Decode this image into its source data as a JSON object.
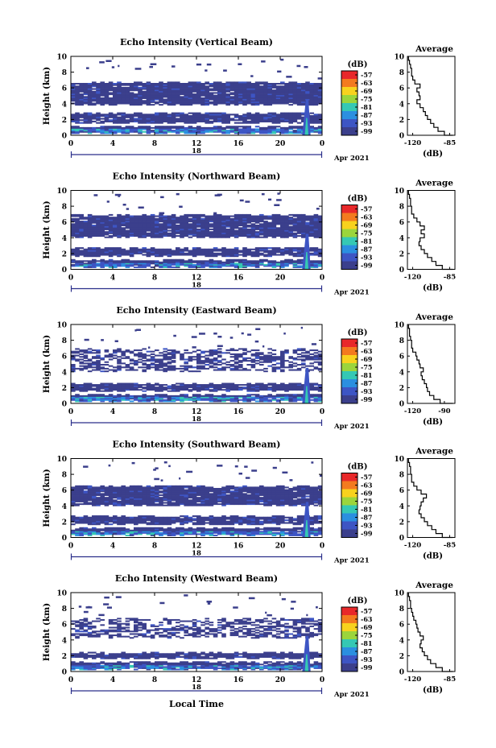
{
  "figure": {
    "date_label": "Apr 2021",
    "bottom_xlabel": "Local Time"
  },
  "colorbar": {
    "unit_label": "(dB)",
    "ticks": [
      "-57",
      "-63",
      "-69",
      "-75",
      "-81",
      "-87",
      "-93",
      "-99"
    ],
    "colors": [
      "#e8282a",
      "#f37a1f",
      "#f8d21e",
      "#9bd53c",
      "#35c8b4",
      "#2b8fe0",
      "#3d55c4",
      "#3b3f8c"
    ]
  },
  "chart_data": [
    {
      "type": "heatmap",
      "title": "Echo Intensity (Vertical Beam)",
      "ylabel": "Height (km)",
      "x_ticks": [
        "0",
        "4",
        "8",
        "12",
        "16",
        "20",
        "0"
      ],
      "y_ticks": [
        "0",
        "2",
        "4",
        "6",
        "8",
        "10"
      ],
      "xlim": [
        0,
        24
      ],
      "ylim": [
        0,
        10
      ],
      "day_marker": "18",
      "layers": [
        {
          "y0": 0.2,
          "y1": 1.2,
          "level": "strong"
        },
        {
          "y0": 1.5,
          "y1": 2.9,
          "level": "weak"
        },
        {
          "y0": 3.8,
          "y1": 6.8,
          "level": "weak"
        }
      ],
      "average_profile": {
        "title": "Average",
        "xlabel": "(dB)",
        "x_ticks": [
          "-120",
          "-85"
        ],
        "y_ticks": [
          "0",
          "2",
          "4",
          "6",
          "8",
          "10"
        ],
        "xlim": [
          -125,
          -80
        ],
        "ylim": [
          0,
          10
        ],
        "points": [
          [
            -82,
            0
          ],
          [
            -90,
            0.5
          ],
          [
            -96,
            1
          ],
          [
            -100,
            1.5
          ],
          [
            -103,
            2
          ],
          [
            -106,
            2.5
          ],
          [
            -108,
            3
          ],
          [
            -110,
            3.5
          ],
          [
            -113,
            4
          ],
          [
            -116,
            4.5
          ],
          [
            -113,
            5
          ],
          [
            -114,
            5.5
          ],
          [
            -116,
            6
          ],
          [
            -113,
            6.5
          ],
          [
            -118,
            7
          ],
          [
            -120,
            7.5
          ],
          [
            -121,
            8
          ],
          [
            -121,
            8.5
          ],
          [
            -122,
            9
          ],
          [
            -123,
            9.5
          ],
          [
            -124,
            10
          ]
        ]
      }
    },
    {
      "type": "heatmap",
      "title": "Echo Intensity (Northward Beam)",
      "ylabel": "Height (km)",
      "x_ticks": [
        "0",
        "4",
        "8",
        "12",
        "16",
        "20",
        "0"
      ],
      "y_ticks": [
        "0",
        "2",
        "4",
        "6",
        "8",
        "10"
      ],
      "xlim": [
        0,
        24
      ],
      "ylim": [
        0,
        10
      ],
      "day_marker": "18",
      "layers": [
        {
          "y0": 0.2,
          "y1": 1.3,
          "level": "strong"
        },
        {
          "y0": 1.6,
          "y1": 2.8,
          "level": "weak"
        },
        {
          "y0": 4.0,
          "y1": 7.0,
          "level": "weak"
        }
      ],
      "average_profile": {
        "title": "Average",
        "xlabel": "(dB)",
        "x_ticks": [
          "-120",
          "-85"
        ],
        "y_ticks": [
          "0",
          "2",
          "4",
          "6",
          "8",
          "10"
        ],
        "xlim": [
          -125,
          -80
        ],
        "ylim": [
          0,
          10
        ],
        "points": [
          [
            -82,
            0
          ],
          [
            -92,
            0.5
          ],
          [
            -98,
            1
          ],
          [
            -102,
            1.5
          ],
          [
            -106,
            2
          ],
          [
            -109,
            2.5
          ],
          [
            -112,
            3
          ],
          [
            -114,
            3.5
          ],
          [
            -113,
            4
          ],
          [
            -109,
            4.5
          ],
          [
            -112,
            5
          ],
          [
            -109,
            5.5
          ],
          [
            -113,
            6
          ],
          [
            -116,
            6.5
          ],
          [
            -119,
            7
          ],
          [
            -121,
            7.5
          ],
          [
            -121,
            8
          ],
          [
            -122,
            8.5
          ],
          [
            -122,
            9
          ],
          [
            -123,
            9.5
          ],
          [
            -124,
            10
          ]
        ]
      }
    },
    {
      "type": "heatmap",
      "title": "Echo Intensity (Eastward Beam)",
      "ylabel": "Height (km)",
      "x_ticks": [
        "0",
        "4",
        "8",
        "12",
        "16",
        "20",
        "0"
      ],
      "y_ticks": [
        "0",
        "2",
        "4",
        "6",
        "8",
        "10"
      ],
      "xlim": [
        0,
        24
      ],
      "ylim": [
        0,
        10
      ],
      "day_marker": "18",
      "layers": [
        {
          "y0": 0.2,
          "y1": 1.2,
          "level": "strong"
        },
        {
          "y0": 1.5,
          "y1": 2.6,
          "level": "weak"
        },
        {
          "y0": 4.0,
          "y1": 7.0,
          "level": "patchy"
        }
      ],
      "average_profile": {
        "title": "Average",
        "xlabel": "(dB)",
        "x_ticks": [
          "-120",
          "-90"
        ],
        "y_ticks": [
          "0",
          "2",
          "4",
          "6",
          "8",
          "10"
        ],
        "xlim": [
          -125,
          -80
        ],
        "ylim": [
          0,
          10
        ],
        "points": [
          [
            -82,
            0
          ],
          [
            -94,
            0.5
          ],
          [
            -100,
            1
          ],
          [
            -104,
            1.5
          ],
          [
            -106,
            2
          ],
          [
            -107,
            2.5
          ],
          [
            -109,
            3
          ],
          [
            -111,
            3.5
          ],
          [
            -112,
            4
          ],
          [
            -110,
            4.5
          ],
          [
            -113,
            5
          ],
          [
            -114,
            5.5
          ],
          [
            -116,
            6
          ],
          [
            -117,
            6.5
          ],
          [
            -120,
            7
          ],
          [
            -121,
            7.5
          ],
          [
            -121,
            8
          ],
          [
            -122,
            8.5
          ],
          [
            -123,
            9
          ],
          [
            -123,
            9.5
          ],
          [
            -124,
            10
          ]
        ]
      }
    },
    {
      "type": "heatmap",
      "title": "Echo Intensity (Southward Beam)",
      "ylabel": "Height (km)",
      "x_ticks": [
        "0",
        "4",
        "8",
        "12",
        "16",
        "20",
        "0"
      ],
      "y_ticks": [
        "0",
        "2",
        "4",
        "6",
        "8",
        "10"
      ],
      "xlim": [
        0,
        24
      ],
      "ylim": [
        0,
        10
      ],
      "day_marker": "18",
      "layers": [
        {
          "y0": 0.2,
          "y1": 1.3,
          "level": "strong"
        },
        {
          "y0": 1.6,
          "y1": 2.8,
          "level": "weak"
        },
        {
          "y0": 4.0,
          "y1": 6.6,
          "level": "weak"
        }
      ],
      "average_profile": {
        "title": "Average",
        "xlabel": "(dB)",
        "x_ticks": [
          "-120",
          "-85"
        ],
        "y_ticks": [
          "0",
          "2",
          "4",
          "6",
          "8",
          "10"
        ],
        "xlim": [
          -125,
          -80
        ],
        "ylim": [
          0,
          10
        ],
        "points": [
          [
            -82,
            0
          ],
          [
            -92,
            0.5
          ],
          [
            -98,
            1
          ],
          [
            -102,
            1.5
          ],
          [
            -106,
            2
          ],
          [
            -109,
            2.5
          ],
          [
            -112,
            3
          ],
          [
            -114,
            3.5
          ],
          [
            -113,
            4
          ],
          [
            -112,
            4.5
          ],
          [
            -110,
            5
          ],
          [
            -107,
            5.5
          ],
          [
            -112,
            6
          ],
          [
            -116,
            6.5
          ],
          [
            -119,
            7
          ],
          [
            -121,
            7.5
          ],
          [
            -121,
            8
          ],
          [
            -122,
            8.5
          ],
          [
            -122,
            9
          ],
          [
            -123,
            9.5
          ],
          [
            -124,
            10
          ]
        ]
      }
    },
    {
      "type": "heatmap",
      "title": "Echo Intensity (Westward Beam)",
      "ylabel": "Height (km)",
      "x_ticks": [
        "0",
        "4",
        "8",
        "12",
        "16",
        "20",
        "0"
      ],
      "y_ticks": [
        "0",
        "2",
        "4",
        "6",
        "8",
        "10"
      ],
      "xlim": [
        0,
        24
      ],
      "ylim": [
        0,
        10
      ],
      "day_marker": "18",
      "layers": [
        {
          "y0": 0.2,
          "y1": 1.3,
          "level": "strong"
        },
        {
          "y0": 1.6,
          "y1": 2.5,
          "level": "weak"
        },
        {
          "y0": 4.2,
          "y1": 6.8,
          "level": "patchy"
        }
      ],
      "average_profile": {
        "title": "Average",
        "xlabel": "(dB)",
        "x_ticks": [
          "-120",
          "-85"
        ],
        "y_ticks": [
          "0",
          "2",
          "4",
          "6",
          "8",
          "10"
        ],
        "xlim": [
          -125,
          -80
        ],
        "ylim": [
          0,
          10
        ],
        "points": [
          [
            -82,
            0
          ],
          [
            -92,
            0.5
          ],
          [
            -98,
            1
          ],
          [
            -103,
            1.5
          ],
          [
            -106,
            2
          ],
          [
            -109,
            2.5
          ],
          [
            -111,
            3
          ],
          [
            -113,
            3.5
          ],
          [
            -112,
            4
          ],
          [
            -110,
            4.5
          ],
          [
            -113,
            5
          ],
          [
            -115,
            5.5
          ],
          [
            -116,
            6
          ],
          [
            -117,
            6.5
          ],
          [
            -119,
            7
          ],
          [
            -120,
            7.5
          ],
          [
            -121,
            8
          ],
          [
            -122,
            8.5
          ],
          [
            -122,
            9
          ],
          [
            -123,
            9.5
          ],
          [
            -124,
            10
          ]
        ]
      }
    }
  ]
}
